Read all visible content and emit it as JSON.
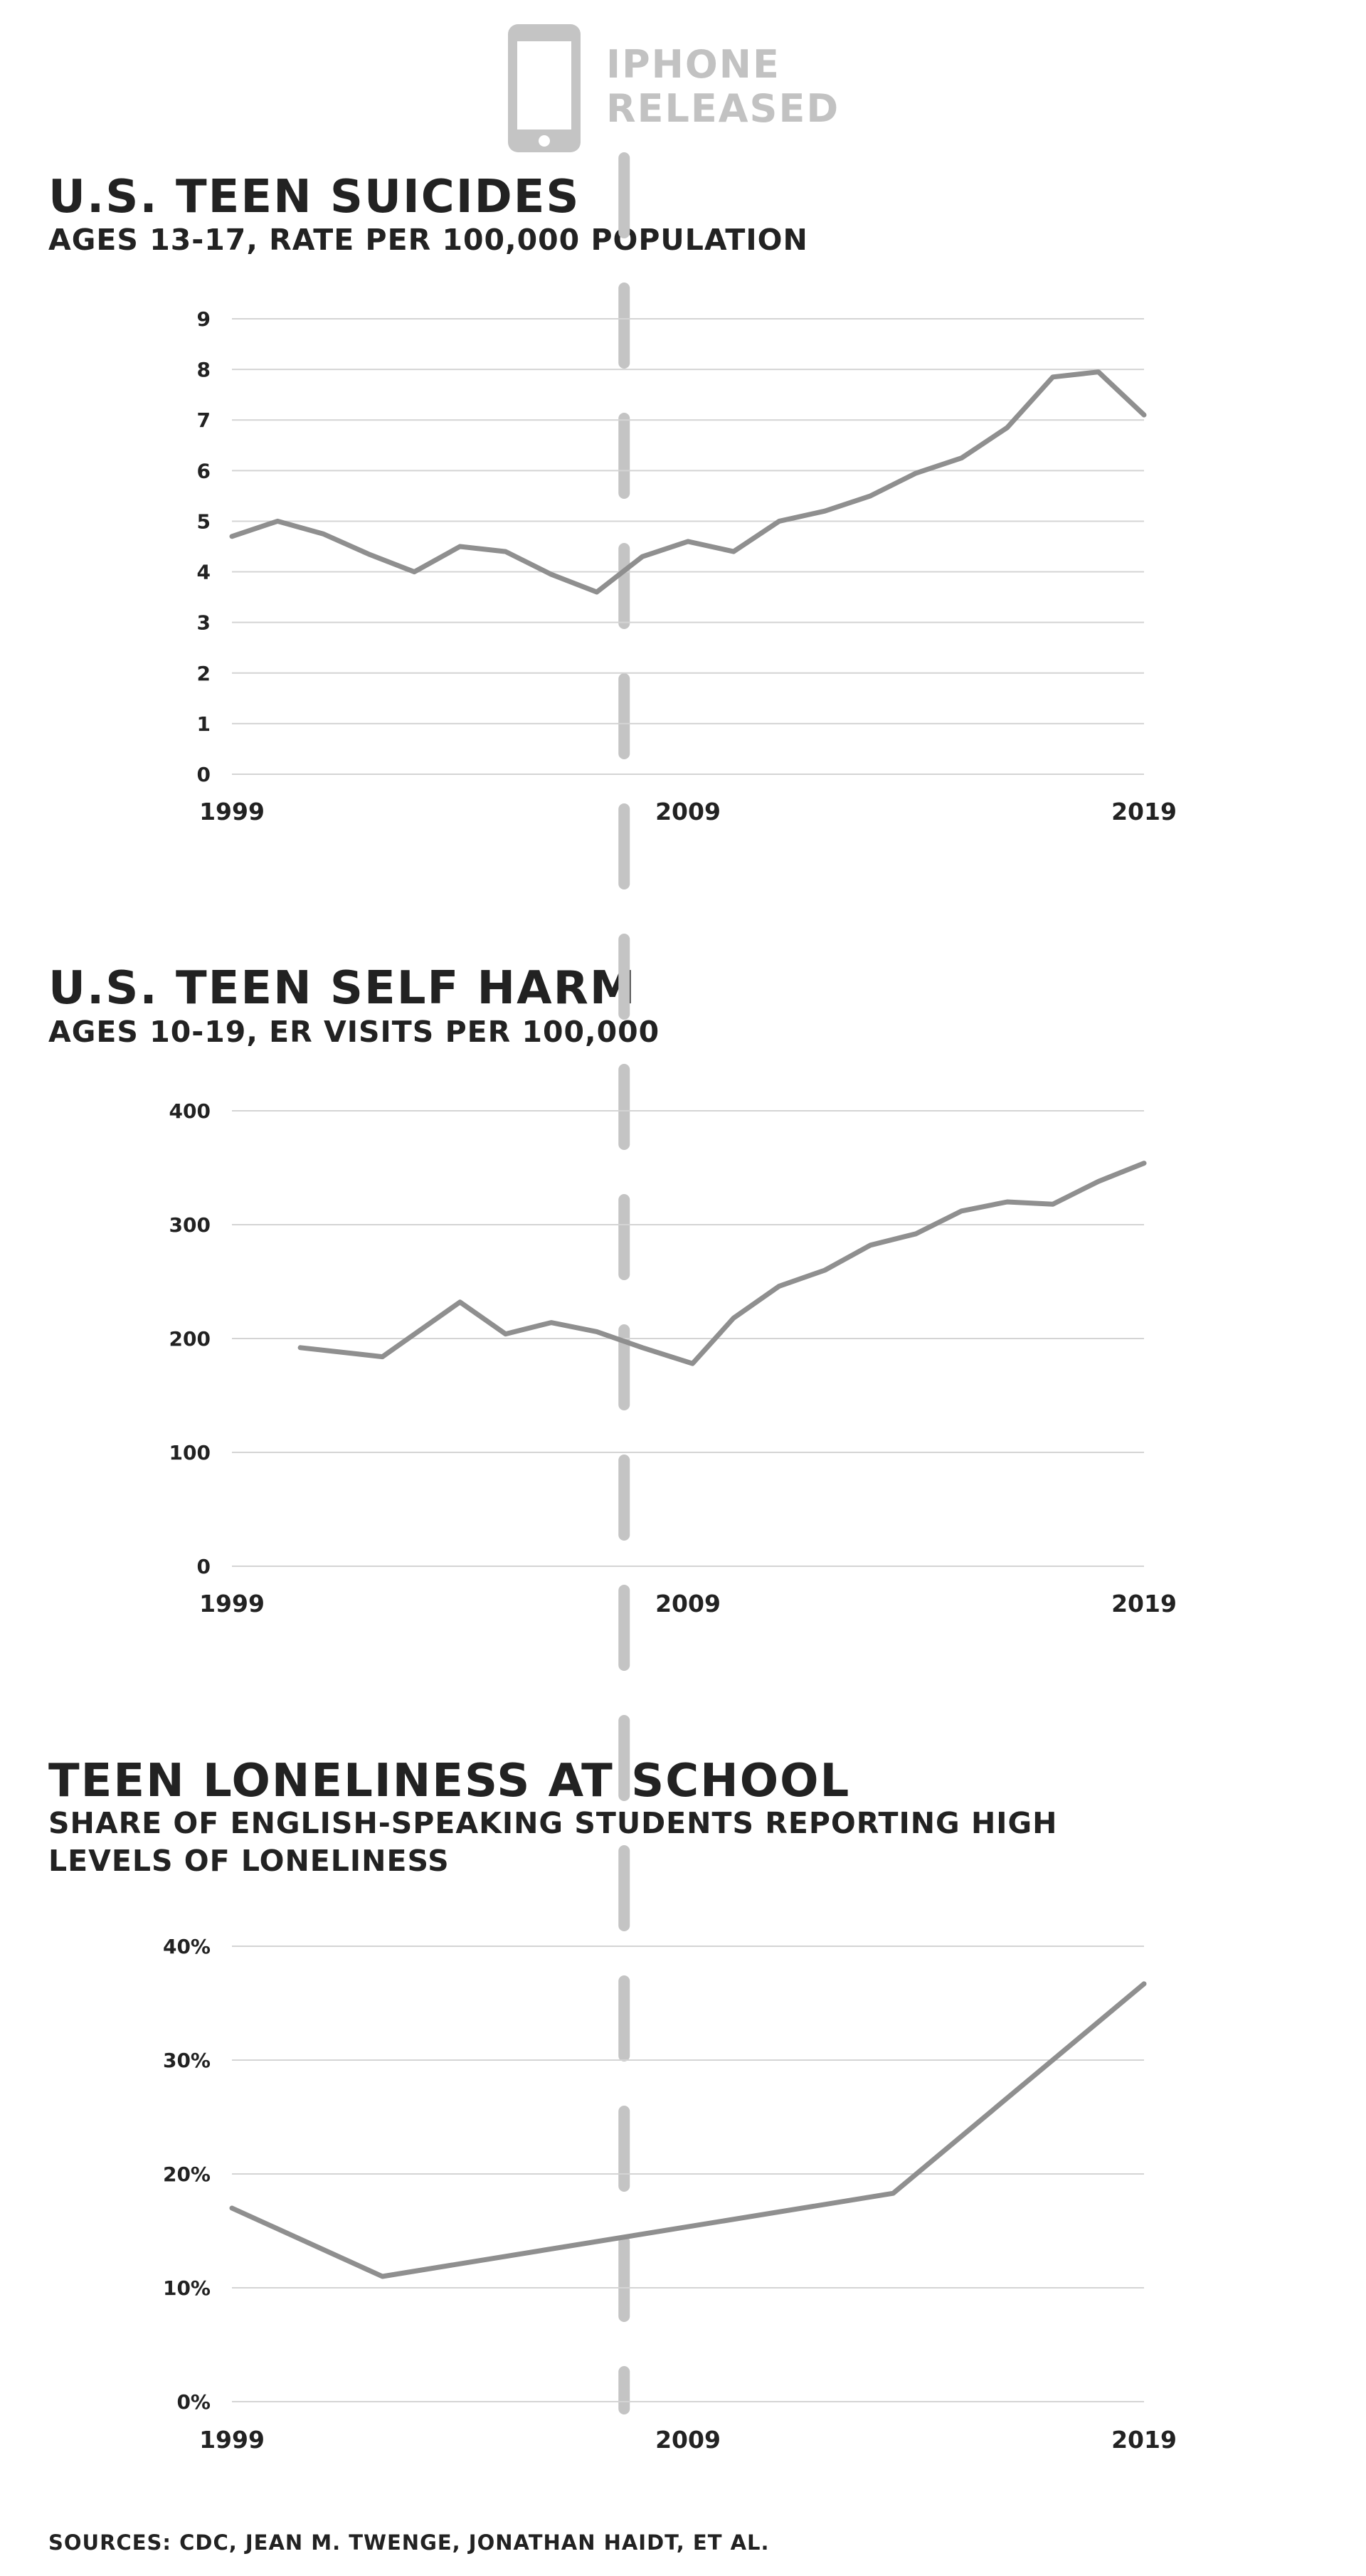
{
  "marker": {
    "label_line1": "IPHONE",
    "label_line2": "RELEASED",
    "year": 2007.6
  },
  "sources": "SOURCES: CDC, JEAN M. TWENGE, JONATHAN HAIDT, ET AL.",
  "colors": {
    "line": "#8f8f8f",
    "grid": "#d4d4d4",
    "marker": "#c4c4c4",
    "text": "#222222"
  },
  "chart_data": [
    {
      "type": "line",
      "title": "U.S. TEEN SUICIDES",
      "subtitle": "AGES 13-17, RATE PER 100,000 POPULATION",
      "xlim": [
        1999,
        2019
      ],
      "ylim": [
        0,
        9
      ],
      "x_ticks": [
        "1999",
        "2009",
        "2019"
      ],
      "y_ticks": [
        "0",
        "1",
        "2",
        "3",
        "4",
        "5",
        "6",
        "7",
        "8",
        "9"
      ],
      "grid": true,
      "series": [
        {
          "x": [
            1999,
            2000,
            2001,
            2002,
            2003,
            2004,
            2005,
            2006,
            2007,
            2008,
            2009,
            2010,
            2011,
            2012,
            2013,
            2014,
            2015,
            2016,
            2017,
            2018,
            2019
          ],
          "y": [
            4.7,
            5.0,
            4.75,
            4.35,
            4.0,
            4.5,
            4.4,
            3.95,
            3.6,
            4.3,
            4.6,
            4.4,
            5.0,
            5.2,
            5.5,
            5.95,
            6.25,
            6.85,
            7.85,
            7.95,
            7.1
          ]
        }
      ]
    },
    {
      "type": "line",
      "title": "U.S. TEEN SELF HARM",
      "subtitle": "AGES 10-19, ER VISITS PER 100,000",
      "xlim": [
        1999,
        2019
      ],
      "ylim": [
        0,
        400
      ],
      "x_ticks": [
        "1999",
        "2009",
        "2019"
      ],
      "y_ticks": [
        "0",
        "100",
        "200",
        "300",
        "400"
      ],
      "grid": true,
      "series": [
        {
          "x": [
            2000.5,
            2002.3,
            2004,
            2005,
            2006,
            2007,
            2008,
            2009.1,
            2010,
            2011,
            2012,
            2013,
            2014,
            2015,
            2016,
            2017,
            2018,
            2019
          ],
          "y": [
            192,
            184,
            232,
            204,
            214,
            206,
            192,
            178,
            218,
            246,
            260,
            282,
            292,
            312,
            320,
            318,
            338,
            354
          ]
        }
      ]
    },
    {
      "type": "line",
      "title": "TEEN LONELINESS AT SCHOOL",
      "subtitle": "SHARE OF ENGLISH-SPEAKING STUDENTS REPORTING HIGH LEVELS OF LONELINESS",
      "xlim": [
        1999,
        2019
      ],
      "ylim": [
        0,
        40
      ],
      "x_ticks": [
        "1999",
        "2009",
        "2019"
      ],
      "y_ticks": [
        "0%",
        "10%",
        "20%",
        "30%",
        "40%"
      ],
      "grid": true,
      "series": [
        {
          "x": [
            1999,
            2002.3,
            2013.5,
            2019
          ],
          "y": [
            17,
            11,
            18.3,
            36.7
          ]
        }
      ]
    }
  ]
}
